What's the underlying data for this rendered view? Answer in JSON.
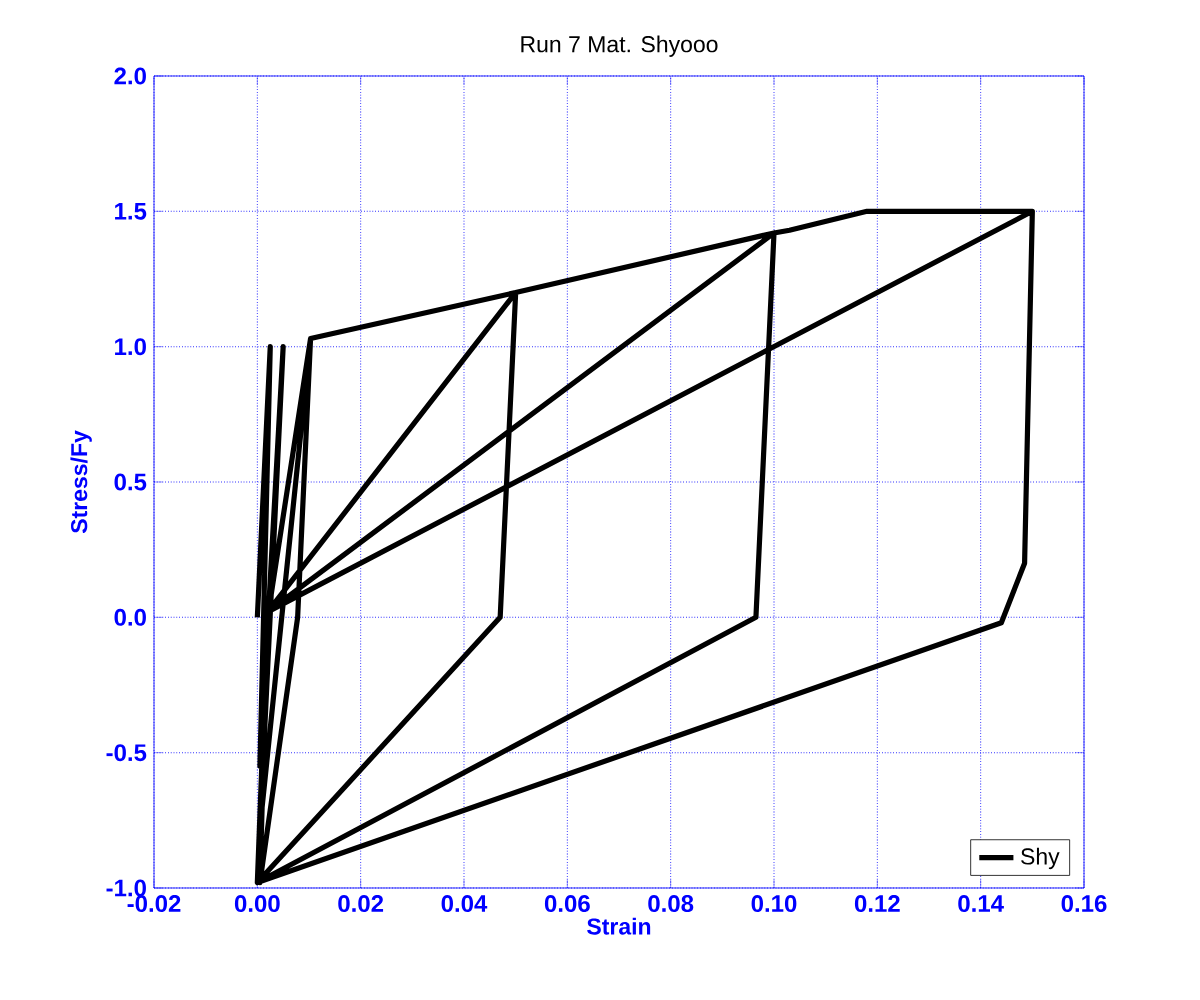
{
  "chart_data": {
    "type": "line",
    "title": "Run 7   Mat. Shyooo",
    "xlabel": "Strain",
    "ylabel": "Stress/Fy",
    "xlim": [
      -0.02,
      0.16
    ],
    "ylim": [
      -1.0,
      2.0
    ],
    "xticks": [
      {
        "value": -0.02,
        "label": "-0.02"
      },
      {
        "value": 0,
        "label": "0.00"
      },
      0.02,
      0.04,
      0.06,
      0.08,
      {
        "value": 0.1,
        "label": "0.10"
      },
      0.12,
      0.14,
      0.16
    ],
    "yticks": [
      {
        "value": -1,
        "label": "-1.0"
      },
      -0.5,
      {
        "value": 0,
        "label": "0.0"
      },
      0.5,
      {
        "value": 1,
        "label": "1.0"
      },
      1.5,
      {
        "value": 2,
        "label": "2.0"
      }
    ],
    "grid": true,
    "legend": "bottom right",
    "marker": "none",
    "line_style": "solid",
    "series": [
      {
        "name": "Shy",
        "color": "#000000",
        "x": [
          0,
          0.0025,
          0.0005,
          0.005,
          0.0005,
          0.0103,
          0.0078,
          0.0005,
          0.002,
          0.0103,
          0.05,
          0.047,
          0,
          0.002,
          0.05,
          0.1,
          0.0965,
          0,
          0.002,
          0.1,
          0.103,
          0.118,
          0.15,
          0.1485,
          0.144,
          0,
          0.002,
          0.15
        ],
        "values": [
          0,
          1.0,
          -0.55,
          1.0,
          -0.78,
          1.03,
          0,
          -0.98,
          0,
          1.03,
          1.2,
          0,
          -0.98,
          0.02,
          1.2,
          1.42,
          0,
          -0.98,
          0.02,
          1.42,
          1.43,
          1.5,
          1.5,
          0.2,
          -0.02,
          -0.98,
          0.02,
          1.5
        ]
      }
    ]
  }
}
